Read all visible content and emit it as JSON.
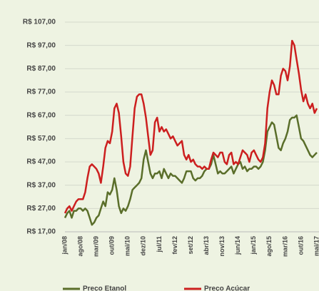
{
  "chart_data": {
    "type": "line",
    "categories": [
      "jan/08",
      null,
      null,
      null,
      null,
      null,
      null,
      "ago/08",
      null,
      null,
      null,
      null,
      null,
      null,
      "mar/09",
      null,
      null,
      null,
      null,
      null,
      null,
      "out/09",
      null,
      null,
      null,
      null,
      null,
      null,
      "mai/10",
      null,
      null,
      null,
      null,
      null,
      null,
      "dez/10",
      null,
      null,
      null,
      null,
      null,
      null,
      "jul/11",
      null,
      null,
      null,
      null,
      null,
      null,
      "fev/12",
      null,
      null,
      null,
      null,
      null,
      null,
      "set/12",
      null,
      null,
      null,
      null,
      null,
      null,
      "abr/13",
      null,
      null,
      null,
      null,
      null,
      null,
      "nov/13",
      null,
      null,
      null,
      null,
      null,
      null,
      "jun/14",
      null,
      null,
      null,
      null,
      null,
      null,
      "jan/15",
      null,
      null,
      null,
      null,
      null,
      null,
      "ago/15",
      null,
      null,
      null,
      null,
      null,
      null,
      "mar/16",
      null,
      null,
      null,
      null,
      null,
      null,
      "out/16",
      null,
      null,
      null,
      null,
      null,
      null,
      "mai/17"
    ],
    "series": [
      {
        "name": "Preço Etanol",
        "color": "#5a6e2a",
        "values": [
          23,
          25,
          26,
          23,
          26,
          26,
          27,
          27,
          26,
          27,
          26,
          23,
          20,
          21,
          23,
          24,
          27,
          30,
          28,
          34,
          33,
          35,
          40,
          35,
          28,
          25,
          27,
          26,
          28,
          31,
          35,
          36,
          37,
          38,
          40,
          48,
          52,
          47,
          42,
          40,
          42,
          42,
          43,
          40,
          44,
          42,
          40,
          42,
          41,
          41,
          40,
          39,
          38,
          40,
          43,
          43,
          43,
          40,
          39,
          40,
          40,
          41,
          43,
          44,
          44,
          46,
          50,
          46,
          42,
          43,
          42,
          42,
          43,
          44,
          45,
          42,
          44,
          46,
          47,
          44,
          45,
          43,
          44,
          44,
          45,
          45,
          44,
          45,
          47,
          52,
          60,
          62,
          64,
          63,
          58,
          53,
          52,
          55,
          57,
          60,
          65,
          66,
          66,
          67,
          62,
          57,
          56,
          54,
          52,
          50,
          49,
          50,
          51
        ]
      },
      {
        "name": "Preço Açúcar",
        "color": "#cc1f1f",
        "values": [
          25,
          27,
          28,
          26,
          28,
          30,
          31,
          31,
          31,
          34,
          40,
          45,
          46,
          45,
          44,
          42,
          38,
          45,
          53,
          56,
          55,
          60,
          70,
          72,
          68,
          58,
          47,
          42,
          41,
          45,
          58,
          70,
          75,
          76,
          76,
          72,
          66,
          58,
          50,
          52,
          64,
          66,
          60,
          62,
          60,
          61,
          59,
          57,
          58,
          56,
          54,
          55,
          56,
          50,
          48,
          50,
          47,
          48,
          46,
          45,
          45,
          44,
          45,
          44,
          44,
          48,
          51,
          50,
          49,
          51,
          51,
          47,
          46,
          50,
          51,
          46,
          47,
          46,
          49,
          52,
          51,
          50,
          47,
          51,
          52,
          50,
          48,
          47,
          49,
          55,
          70,
          77,
          82,
          80,
          76,
          76,
          84,
          87,
          86,
          82,
          88,
          99,
          97,
          91,
          85,
          78,
          73,
          76,
          72,
          70,
          72,
          68,
          70
        ]
      }
    ],
    "ylim": [
      17,
      107
    ],
    "yticks": [
      {
        "value": 17,
        "label": "R$ 17,00"
      },
      {
        "value": 27,
        "label": "R$ 27,00"
      },
      {
        "value": 37,
        "label": "R$ 37,00"
      },
      {
        "value": 47,
        "label": "R$ 47,00"
      },
      {
        "value": 57,
        "label": "R$ 57,00"
      },
      {
        "value": 67,
        "label": "R$ 67,00"
      },
      {
        "value": 77,
        "label": "R$ 77,00"
      },
      {
        "value": 87,
        "label": "R$ 87,00"
      },
      {
        "value": 97,
        "label": "R$ 97,00"
      },
      {
        "value": 107,
        "label": "R$ 107,00"
      }
    ],
    "grid": true
  }
}
